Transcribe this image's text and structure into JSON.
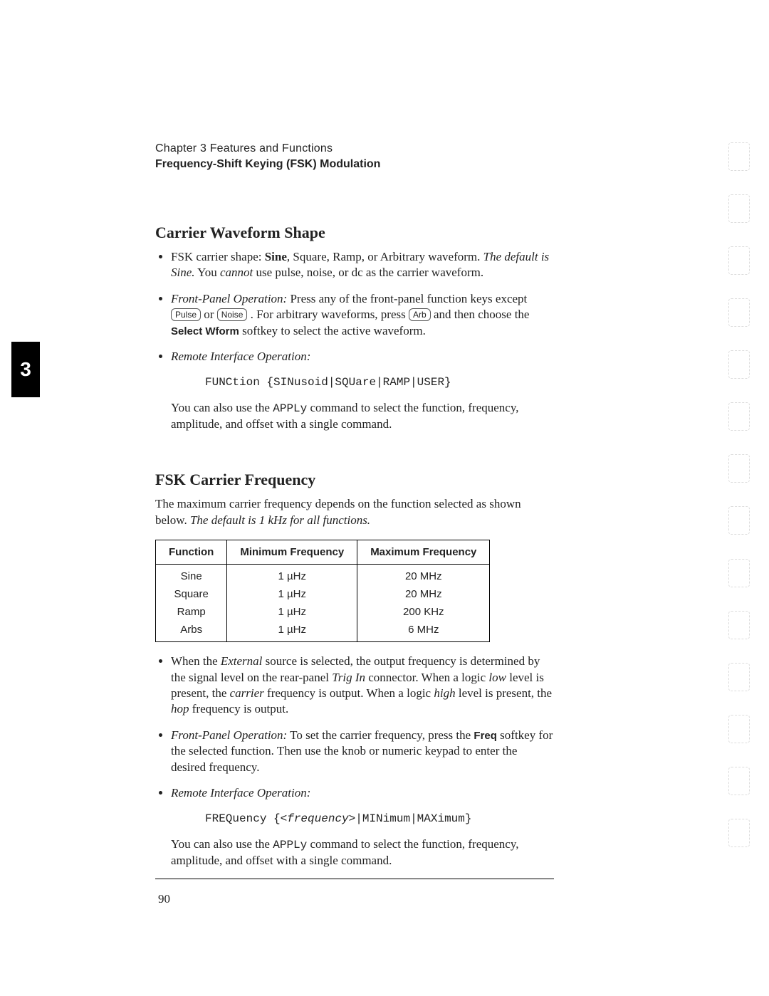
{
  "chapter_line": "Chapter 3  Features and Functions",
  "section_title": "Frequency-Shift Keying (FSK) Modulation",
  "chapter_tab": "3",
  "h2_carrier": "Carrier Waveform Shape",
  "carrier_bullets": {
    "b1_pre": "FSK carrier shape: ",
    "b1_bold": "Sine",
    "b1_post1": ", Square, Ramp, or Arbitrary waveform. ",
    "b1_italic": "The default is Sine.",
    "b1_post2": " You ",
    "b1_cannot": "cannot",
    "b1_post3": " use pulse, noise, or dc as the carrier waveform.",
    "b2_label": "Front-Panel Operation:",
    "b2_text1": "  Press any of the front-panel function keys except ",
    "b2_key1": "Pulse",
    "b2_or": " or ",
    "b2_key2": "Noise",
    "b2_text2": " . For arbitrary waveforms, press ",
    "b2_key3": "Arb",
    "b2_text3": " and then choose the ",
    "b2_soft": "Select Wform",
    "b2_text4": " softkey to select the active waveform.",
    "b3_label": "Remote Interface Operation:"
  },
  "code1": "FUNCtion {SINusoid|SQUare|RAMP|USER}",
  "apply_para1_a": "You can also use the ",
  "apply_para1_mono": "APPLy",
  "apply_para1_b": " command to select the function, frequency, amplitude, and offset with a single command.",
  "h2_freq": "FSK Carrier Frequency",
  "freq_intro_a": "The maximum carrier frequency depends on the function selected as shown below. ",
  "freq_intro_italic": "The default is 1 kHz for all functions.",
  "table": {
    "columns": [
      "Function",
      "Minimum Frequency",
      "Maximum Frequency"
    ],
    "rows": [
      [
        "Sine",
        "1 µHz",
        "20 MHz"
      ],
      [
        "Square",
        "1 µHz",
        "20 MHz"
      ],
      [
        "Ramp",
        "1 µHz",
        "200 KHz"
      ],
      [
        "Arbs",
        "1 µHz",
        "6 MHz"
      ]
    ]
  },
  "freq_bullets": {
    "b1_a": "When the ",
    "b1_ext": "External",
    "b1_b": " source is selected, the output frequency is determined by the signal level on the rear-panel ",
    "b1_trig": "Trig In",
    "b1_c": " connector. When a logic ",
    "b1_low": "low",
    "b1_d": " level is present, the ",
    "b1_carrier": "carrier",
    "b1_e": " frequency is output. When a logic ",
    "b1_high": "high",
    "b1_f": " level is present, the ",
    "b1_hop": "hop",
    "b1_g": " frequency is output.",
    "b2_label": "Front-Panel Operation:",
    "b2_a": "  To set the carrier frequency, press the ",
    "b2_freq": "Freq",
    "b2_b": " softkey for the selected function. Then use the knob or numeric keypad to enter the desired frequency.",
    "b3_label": "Remote Interface Operation:"
  },
  "code2_a": "FREQuency {",
  "code2_param": "<frequency>",
  "code2_b": "|MINimum|MAXimum}",
  "apply_para2_a": "You can also use the ",
  "apply_para2_mono": "APPLy",
  "apply_para2_b": " command to select the function, frequency, amplitude, and offset with a single command.",
  "page_number": "90"
}
